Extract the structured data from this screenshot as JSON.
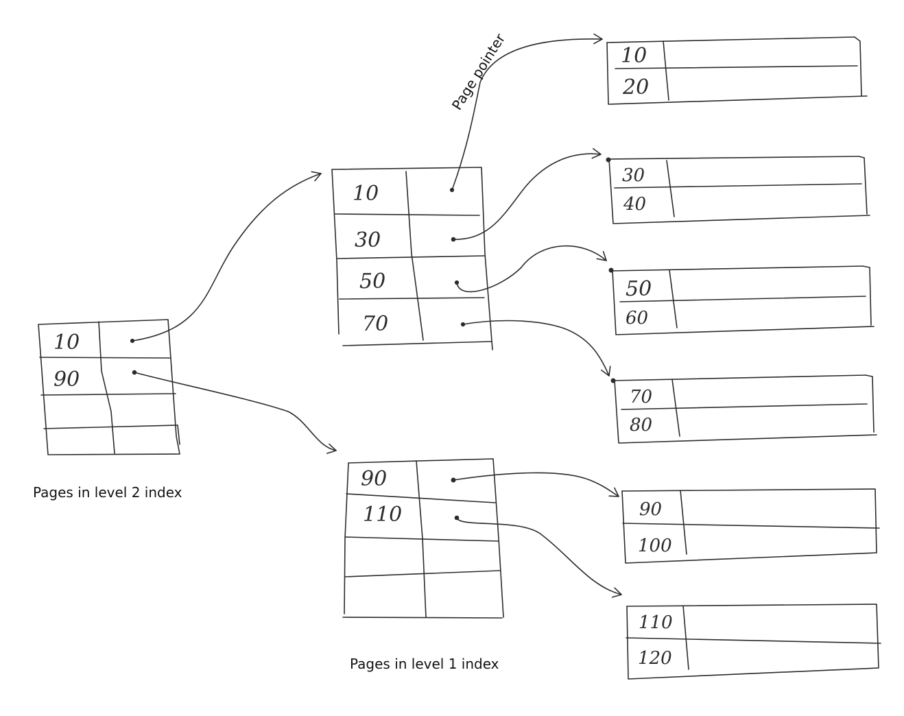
{
  "captions": {
    "level2": "Pages in level 2 index",
    "level1": "Pages in level 1 index",
    "pointer": "Page pointer"
  },
  "level2_page": {
    "keys": [
      "10",
      "90",
      "",
      ""
    ]
  },
  "level1_pages": [
    {
      "keys": [
        "10",
        "30",
        "50",
        "70"
      ]
    },
    {
      "keys": [
        "90",
        "110",
        "",
        ""
      ]
    }
  ],
  "leaf_pages": [
    {
      "keys": [
        "10",
        "20"
      ]
    },
    {
      "keys": [
        "30",
        "40"
      ]
    },
    {
      "keys": [
        "50",
        "60"
      ]
    },
    {
      "keys": [
        "70",
        "80"
      ]
    },
    {
      "keys": [
        "90",
        "100"
      ]
    },
    {
      "keys": [
        "110",
        "120"
      ]
    }
  ]
}
